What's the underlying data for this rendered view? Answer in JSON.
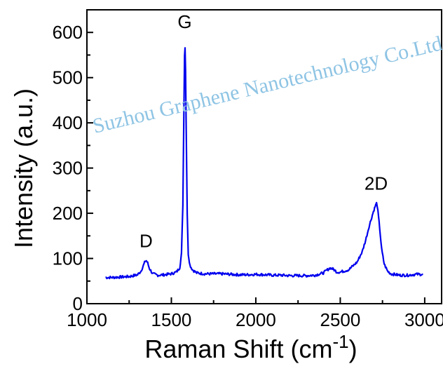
{
  "chart_data": {
    "type": "line",
    "title": "",
    "xlabel": "Raman Shift (cm",
    "xlabel_sup": "-1",
    "xlabel_close": ")",
    "ylabel": "Intensity (a.u.)",
    "xlim": [
      1000,
      3100
    ],
    "ylim": [
      0,
      650
    ],
    "x_ticks": [
      1000,
      1500,
      2000,
      2500,
      3000
    ],
    "y_ticks": [
      0,
      100,
      200,
      300,
      400,
      500,
      600
    ],
    "grid": false,
    "series": [
      {
        "color": "#0000ee",
        "x": [
          1110,
          1150,
          1200,
          1250,
          1300,
          1320,
          1335,
          1345,
          1352,
          1360,
          1370,
          1390,
          1420,
          1460,
          1500,
          1530,
          1550,
          1560,
          1568,
          1574,
          1578,
          1581,
          1584,
          1588,
          1594,
          1600,
          1610,
          1625,
          1650,
          1700,
          1750,
          1800,
          1850,
          1900,
          1950,
          2000,
          2050,
          2100,
          2150,
          2200,
          2250,
          2300,
          2350,
          2400,
          2420,
          2440,
          2460,
          2480,
          2500,
          2550,
          2600,
          2630,
          2650,
          2670,
          2690,
          2700,
          2710,
          2715,
          2720,
          2730,
          2745,
          2760,
          2780,
          2800,
          2850,
          2900,
          2950,
          2990
        ],
        "values": [
          58,
          58,
          59,
          60,
          64,
          72,
          85,
          94,
          95,
          90,
          78,
          66,
          63,
          64,
          66,
          70,
          80,
          110,
          220,
          420,
          550,
          566,
          520,
          380,
          200,
          110,
          85,
          75,
          68,
          66,
          66,
          66,
          65,
          64,
          64,
          65,
          64,
          63,
          63,
          62,
          62,
          62,
          63,
          68,
          74,
          79,
          76,
          70,
          70,
          75,
          92,
          115,
          140,
          170,
          196,
          208,
          218,
          222,
          215,
          180,
          120,
          88,
          72,
          66,
          63,
          63,
          65,
          65
        ]
      }
    ],
    "annotations": [
      {
        "text": "D",
        "x": 1350,
        "y": 125
      },
      {
        "text": "G",
        "x": 1579,
        "y": 610
      },
      {
        "text": "2D",
        "x": 2712,
        "y": 252
      }
    ]
  },
  "watermark": "Suzhou Graphene Nanotechnology Co.Ltd"
}
